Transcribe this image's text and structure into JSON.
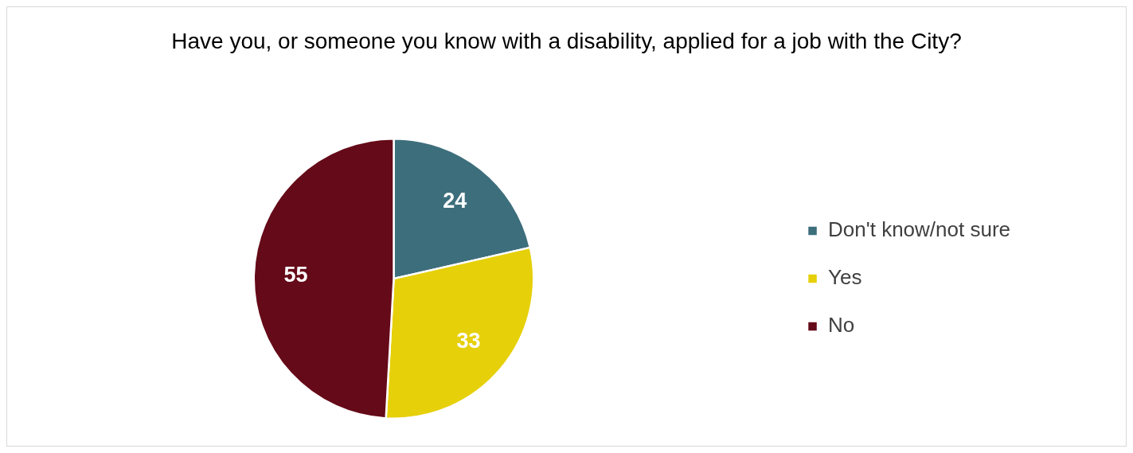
{
  "chart_data": {
    "type": "pie",
    "title": "Have you, or someone you know with a disability, applied for a job with the City?",
    "categories": [
      "Don't know/not sure",
      "Yes",
      "No"
    ],
    "values": [
      24,
      33,
      55
    ],
    "colors": [
      "#3d6e7c",
      "#e6d00a",
      "#650a18"
    ],
    "data_labels": true,
    "legend": "right"
  }
}
